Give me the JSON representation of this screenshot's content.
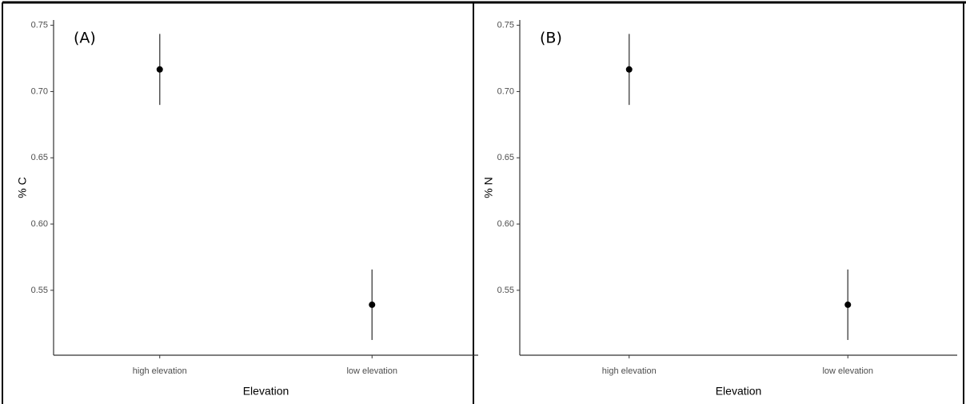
{
  "chart_data": [
    {
      "type": "pointrange",
      "label": "(A)",
      "x_label": "Elevation",
      "y_label": "% C",
      "categories": [
        "high elevation",
        "low elevation"
      ],
      "values": [
        0.7167,
        0.5391
      ],
      "errors": [
        0.0268,
        0.0266
      ],
      "color": "#000000",
      "error_color": "#555555",
      "ylim": [
        0.501,
        0.754
      ],
      "yticks": [
        0.55,
        {
          "value": 0.6,
          "label": "0.60"
        },
        0.65,
        {
          "value": 0.7,
          "label": "0.70"
        },
        0.75
      ]
    },
    {
      "type": "pointrange",
      "label": "(B)",
      "x_label": "Elevation",
      "y_label": "% N",
      "categories": [
        "high elevation",
        "low elevation"
      ],
      "values": [
        0.7167,
        0.5391
      ],
      "errors": [
        0.0268,
        0.0266
      ],
      "color": "#000000",
      "error_color": "#555555",
      "ylim": [
        0.501,
        0.754
      ],
      "yticks": [
        0.55,
        {
          "value": 0.6,
          "label": "0.60"
        },
        0.65,
        {
          "value": 0.7,
          "label": "0.70"
        },
        0.75
      ]
    }
  ]
}
